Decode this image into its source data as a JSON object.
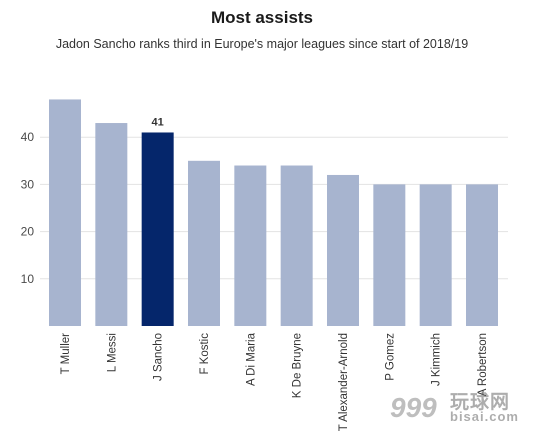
{
  "chart_data": {
    "type": "bar",
    "title": "Most assists",
    "subtitle": "Jadon Sancho ranks third in Europe's major leagues since start of 2018/19",
    "categories": [
      "T Muller",
      "L Messi",
      "J Sancho",
      "F Kostic",
      "A Di Maria",
      "K De Bruyne",
      "T Alexander-Arnold",
      "P Gomez",
      "J Kimmich",
      "A Robertson"
    ],
    "values": [
      48,
      43,
      41,
      35,
      34,
      34,
      32,
      30,
      30,
      30
    ],
    "highlight_index": 2,
    "highlight_label": "41",
    "yticks": [
      10,
      20,
      30,
      40
    ],
    "ylim": [
      0,
      50
    ],
    "grid": true,
    "colors": {
      "default_bar": "#a7b4cf",
      "highlight_bar": "#05266b",
      "grid": "#e3e3e3"
    }
  },
  "watermark": {
    "text_cn": "玩球网",
    "url": "bisai.com",
    "logo_text": "999"
  }
}
